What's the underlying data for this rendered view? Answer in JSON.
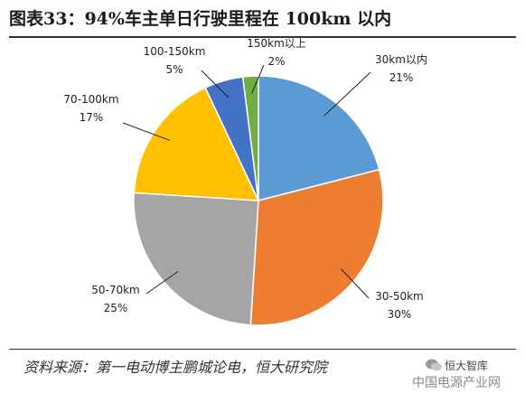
{
  "header": {
    "title": "图表33：94%车主单日行驶里程在 100km 以内"
  },
  "chart_data": {
    "type": "pie",
    "title": "图表33：94%车主单日行驶里程在 100km 以内",
    "start_angle_deg": 0,
    "direction": "clockwise",
    "slices": [
      {
        "label": "30km以内",
        "value": 21,
        "value_label": "21%",
        "color": "#5b9bd5"
      },
      {
        "label": "30-50km",
        "value": 30,
        "value_label": "30%",
        "color": "#ed7d31"
      },
      {
        "label": "50-70km",
        "value": 25,
        "value_label": "25%",
        "color": "#a5a5a5"
      },
      {
        "label": "70-100km",
        "value": 17,
        "value_label": "17%",
        "color": "#ffc000"
      },
      {
        "label": "100-150km",
        "value": 5,
        "value_label": "5%",
        "color": "#4472c4"
      },
      {
        "label": "150km以上",
        "value": 2,
        "value_label": "2%",
        "color": "#70ad47"
      }
    ]
  },
  "footer": {
    "source": "资料来源：第一电动博主鹏城论电，恒大研究院",
    "watermark_line1": "恒大智库",
    "watermark_line2": "中国电源产业网"
  }
}
